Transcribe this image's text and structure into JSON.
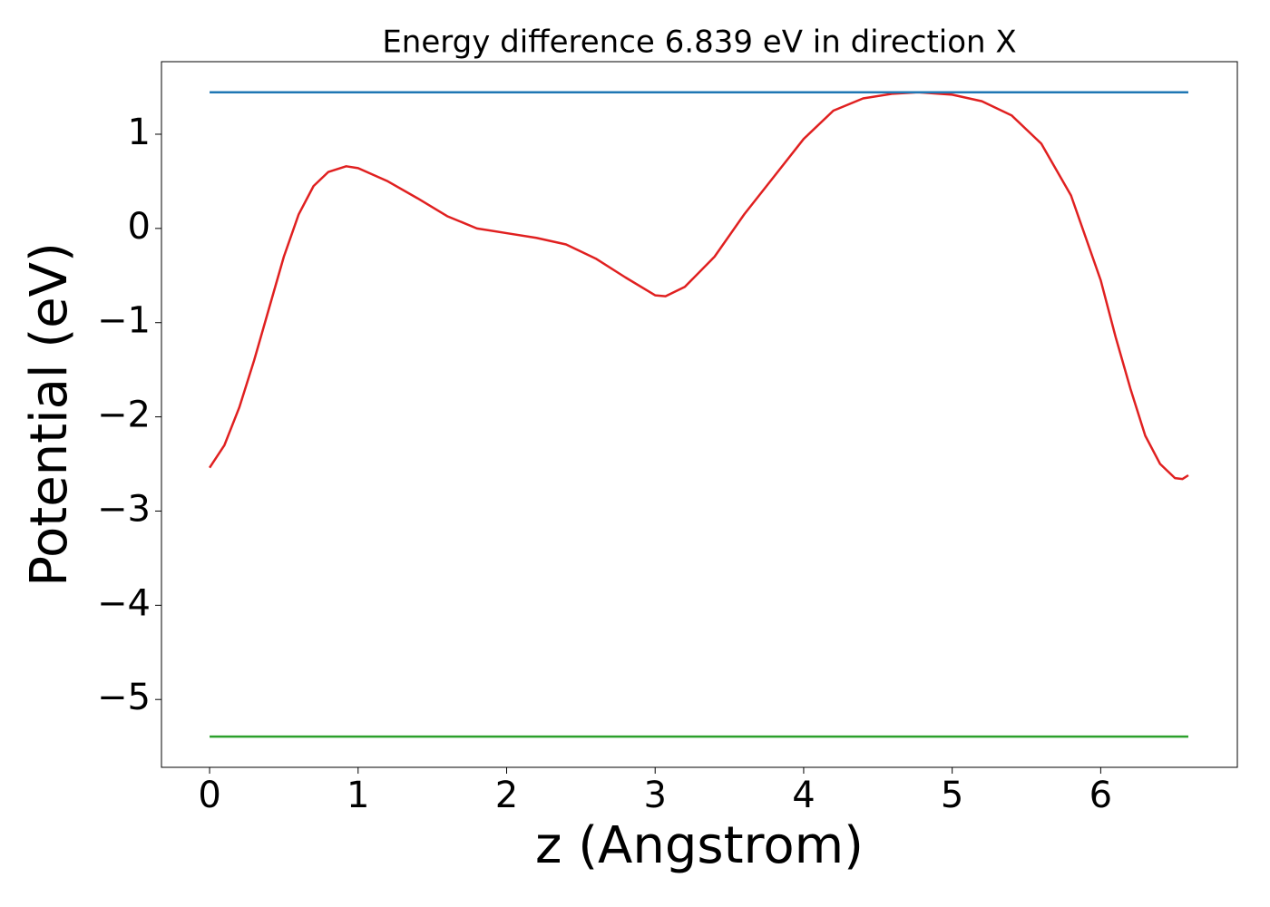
{
  "chart_data": {
    "type": "line",
    "title": "Energy difference 6.839 eV in direction X",
    "x_label": "z (Angstrom)",
    "y_label": "Potential (eV)",
    "xlim": [
      -0.324,
      6.92
    ],
    "ylim": [
      -5.72,
      1.77
    ],
    "xticks": [
      0,
      1,
      2,
      3,
      4,
      5,
      6
    ],
    "yticks": [
      {
        "value": -5,
        "label": "−5"
      },
      {
        "value": -4,
        "label": "−4"
      },
      {
        "value": -3,
        "label": "−3"
      },
      {
        "value": -2,
        "label": "−2"
      },
      {
        "value": -1,
        "label": "−1"
      },
      0,
      1
    ],
    "grid": false,
    "series": [
      {
        "color": "#e02020",
        "x": [
          0,
          0.1,
          0.2,
          0.3,
          0.4,
          0.5,
          0.6,
          0.7,
          0.8,
          0.92,
          1.0,
          1.2,
          1.4,
          1.6,
          1.8,
          2.0,
          2.2,
          2.4,
          2.6,
          2.8,
          3.0,
          3.07,
          3.2,
          3.4,
          3.6,
          3.8,
          4.0,
          4.2,
          4.4,
          4.6,
          4.77,
          5.0,
          5.2,
          5.4,
          5.6,
          5.8,
          6.0,
          6.1,
          6.2,
          6.3,
          6.4,
          6.5,
          6.55,
          6.59
        ],
        "values": [
          -2.54,
          -2.3,
          -1.9,
          -1.4,
          -0.85,
          -0.3,
          0.15,
          0.45,
          0.6,
          0.66,
          0.64,
          0.5,
          0.32,
          0.13,
          0.0,
          -0.05,
          -0.1,
          -0.17,
          -0.32,
          -0.52,
          -0.71,
          -0.72,
          -0.62,
          -0.3,
          0.15,
          0.55,
          0.95,
          1.25,
          1.38,
          1.43,
          1.445,
          1.42,
          1.35,
          1.2,
          0.9,
          0.35,
          -0.55,
          -1.15,
          -1.7,
          -2.2,
          -2.5,
          -2.65,
          -2.66,
          -2.62
        ]
      },
      {
        "color": "#1f77b4",
        "x": [
          0,
          6.59
        ],
        "values": [
          1.445,
          1.445
        ]
      },
      {
        "color": "#2ca02c",
        "x": [
          0,
          6.59
        ],
        "values": [
          -5.394,
          -5.394
        ]
      }
    ]
  }
}
